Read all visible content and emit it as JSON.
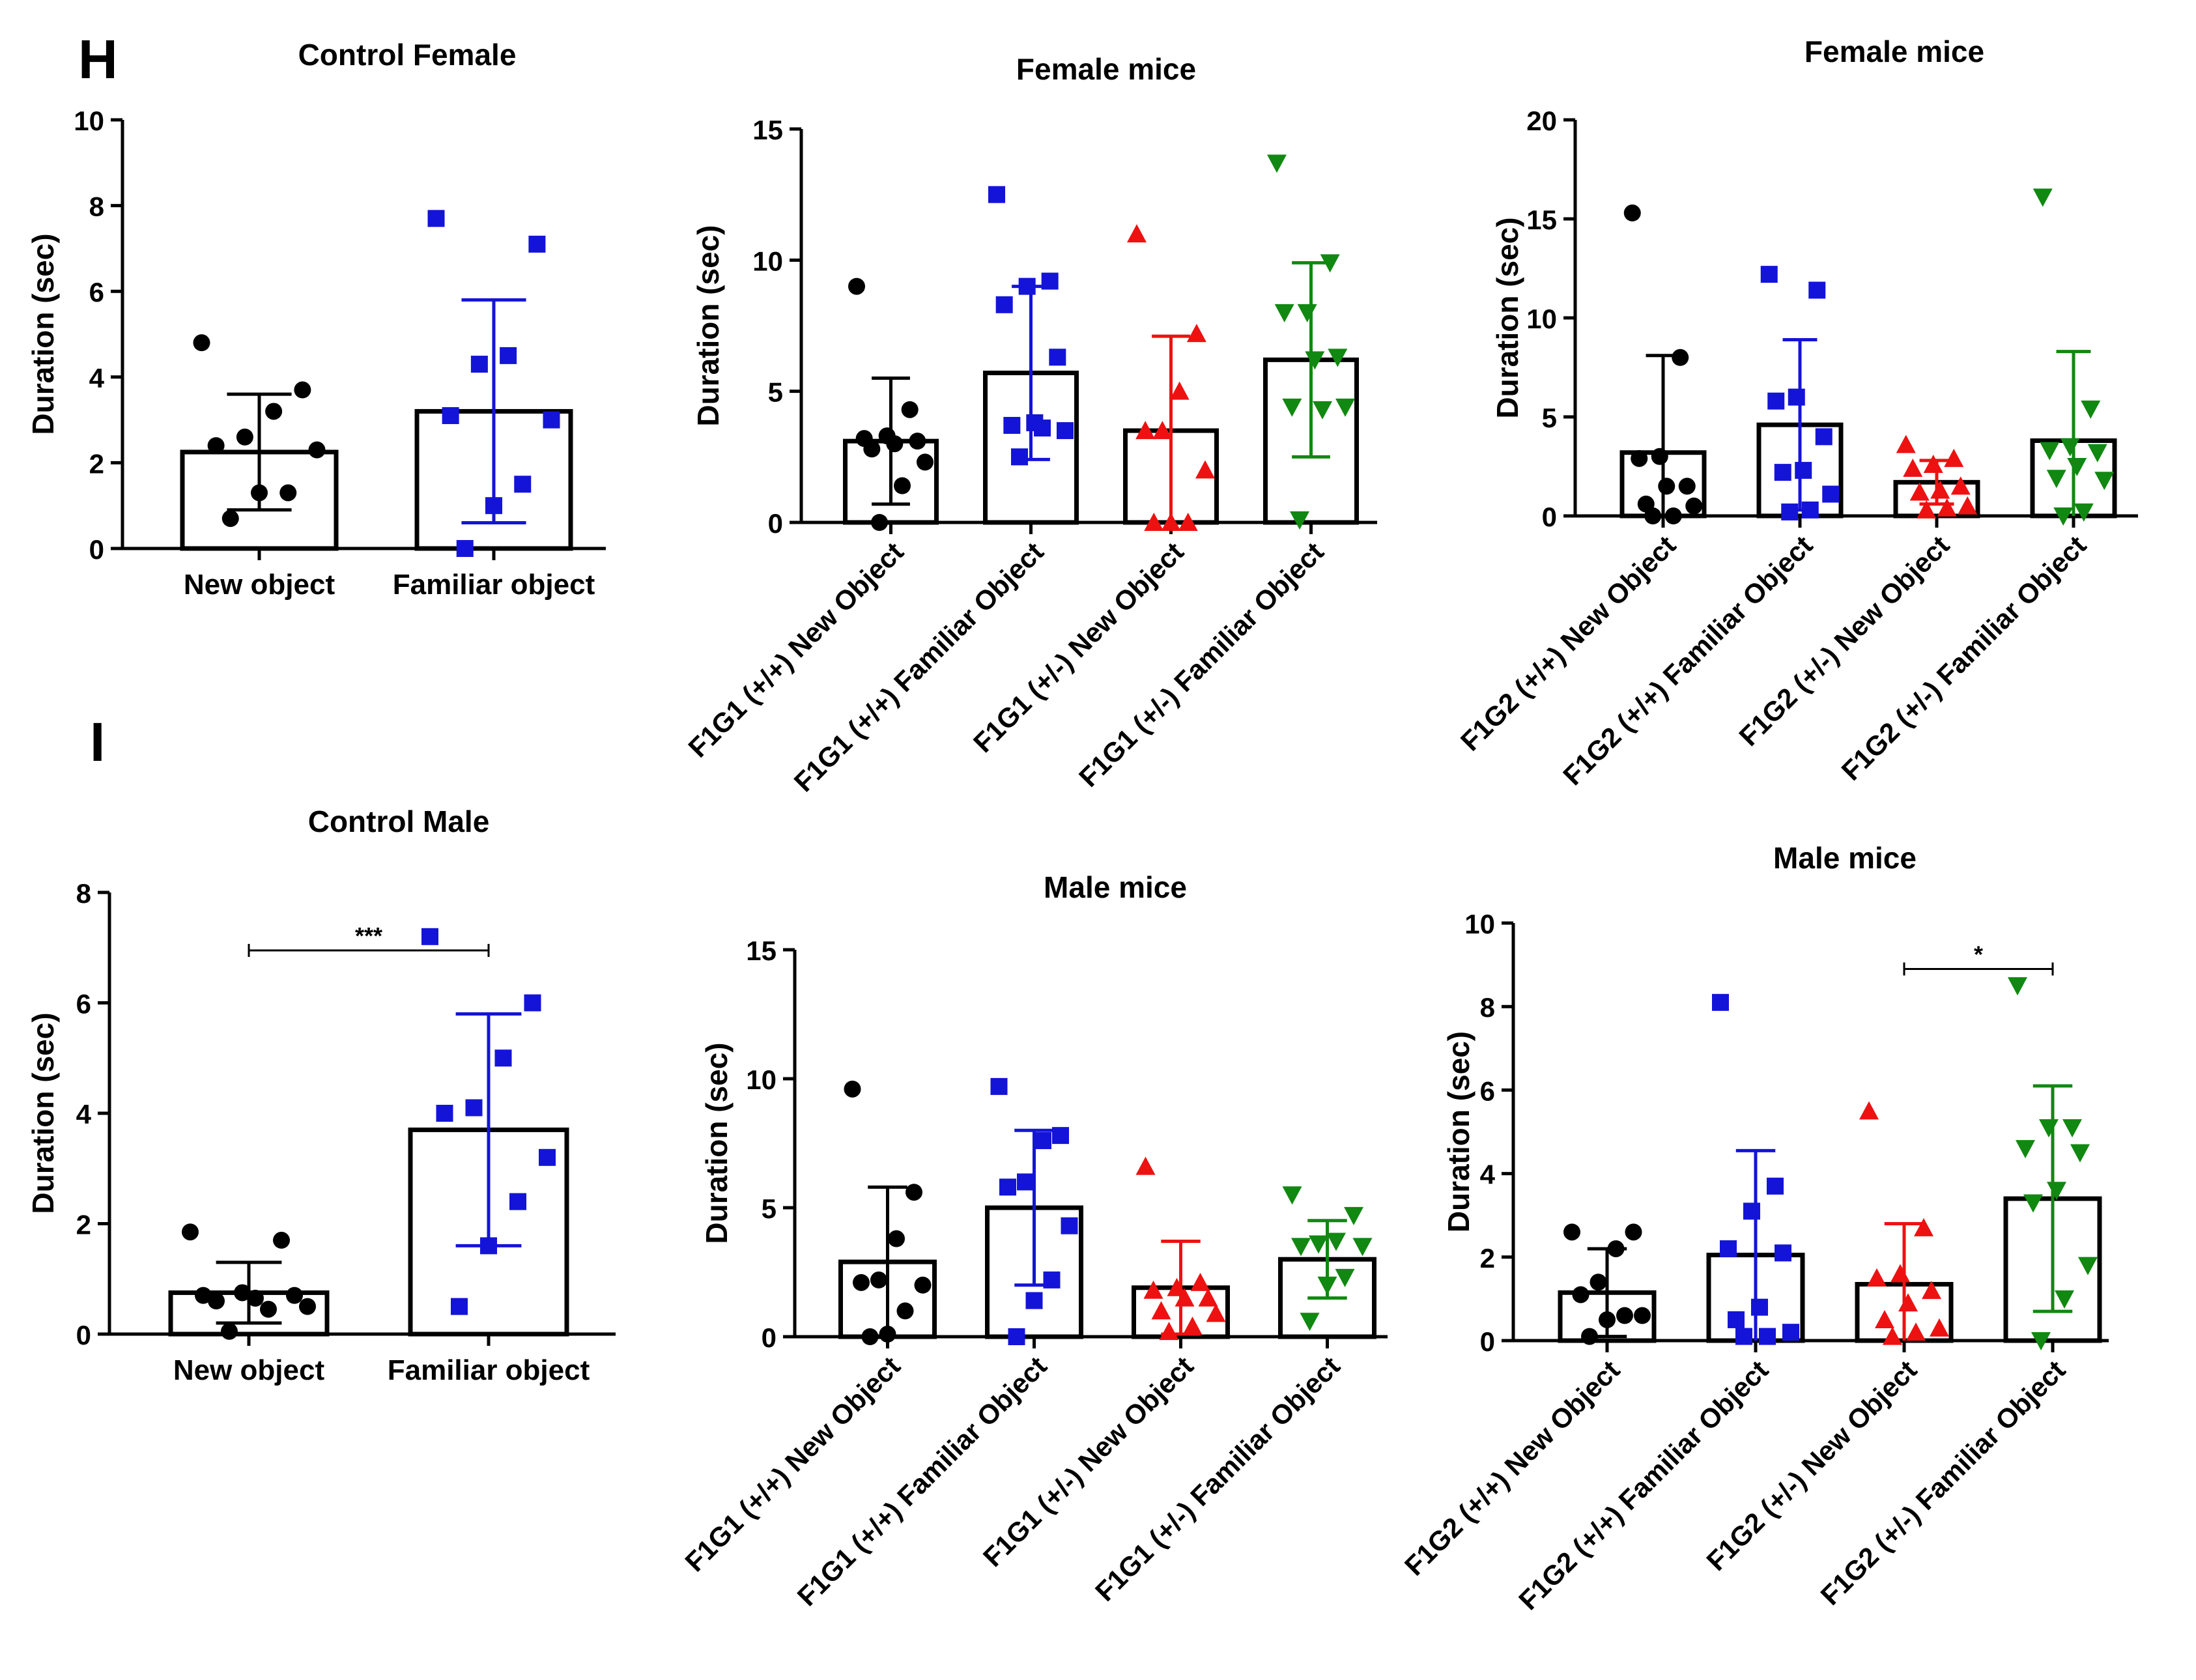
{
  "panels": {
    "h": {
      "letter": "H"
    },
    "i": {
      "letter": "I"
    }
  },
  "chart_data": [
    {
      "id": "h-control-female",
      "type": "bar",
      "title": "Control Female",
      "xlabel": "",
      "ylabel": "Duration (sec)",
      "ylim": [
        0,
        10
      ],
      "yticks": [
        0,
        2,
        4,
        6,
        8,
        10
      ],
      "categories": [
        "New object",
        "Familiar object"
      ],
      "series": [
        {
          "name": "New object",
          "color": "#000000",
          "marker": "circle",
          "mean": 2.25,
          "sd": 1.35,
          "points": [
            4.8,
            3.7,
            3.2,
            2.6,
            2.4,
            2.3,
            1.3,
            1.3,
            0.7
          ]
        },
        {
          "name": "Familiar object",
          "color": "#1414d8",
          "marker": "square",
          "mean": 3.2,
          "sd": 2.6,
          "points": [
            7.7,
            7.1,
            4.5,
            4.3,
            3.1,
            3.0,
            1.5,
            1.0,
            0.0
          ]
        }
      ],
      "significance": null
    },
    {
      "id": "h-female-f1g1",
      "type": "bar",
      "title": "Female mice",
      "xlabel": "",
      "ylabel": "Duration (sec)",
      "ylim": [
        0,
        15
      ],
      "yticks": [
        0,
        5,
        10,
        15
      ],
      "categories": [
        "F1G1 (+/+) New Object",
        "F1G1 (+/+) Familiar Object",
        "F1G1 (+/-) New Object",
        "F1G1 (+/-) Familiar Object"
      ],
      "series": [
        {
          "name": "F1G1 (+/+) New Object",
          "color": "#000000",
          "marker": "circle",
          "mean": 3.1,
          "sd": 2.4,
          "points": [
            9.0,
            4.3,
            3.3,
            3.2,
            3.1,
            3.0,
            2.8,
            2.3,
            1.4,
            0.0
          ]
        },
        {
          "name": "F1G1 (+/+) Familiar Object",
          "color": "#1414d8",
          "marker": "square",
          "mean": 5.7,
          "sd": 3.3,
          "points": [
            12.5,
            9.2,
            9.0,
            8.3,
            6.3,
            3.8,
            3.7,
            3.5,
            3.6,
            2.5
          ]
        },
        {
          "name": "F1G1 (+/-) New Object",
          "color": "#ee1111",
          "marker": "triangle-up",
          "mean": 3.5,
          "sd": 3.6,
          "points": [
            11.0,
            7.2,
            5.0,
            3.5,
            3.5,
            2.0,
            0.0,
            0.0,
            0.0
          ]
        },
        {
          "name": "F1G1 (+/-) Familiar Object",
          "color": "#118811",
          "marker": "triangle-down",
          "mean": 6.2,
          "sd": 3.7,
          "points": [
            13.7,
            9.9,
            8.0,
            8.0,
            6.3,
            6.2,
            4.4,
            4.4,
            4.3,
            0.1
          ]
        }
      ],
      "significance": null
    },
    {
      "id": "h-female-f1g2",
      "type": "bar",
      "title": "Female mice",
      "xlabel": "",
      "ylabel": "Duration (sec)",
      "ylim": [
        0,
        20
      ],
      "yticks": [
        0,
        5,
        10,
        15,
        20
      ],
      "categories": [
        "F1G2 (+/+) New Object",
        "F1G2 (+/+) Familiar Object",
        "F1G2 (+/-) New Object",
        "F1G2 (+/-) Familiar Object"
      ],
      "series": [
        {
          "name": "F1G2 (+/+) New Object",
          "color": "#000000",
          "marker": "circle",
          "mean": 3.2,
          "sd": 4.9,
          "points": [
            15.3,
            8.0,
            3.0,
            2.9,
            1.5,
            1.5,
            0.6,
            0.5,
            0.0,
            0.0
          ]
        },
        {
          "name": "F1G2 (+/+) Familiar Object",
          "color": "#1414d8",
          "marker": "square",
          "mean": 4.6,
          "sd": 4.3,
          "points": [
            12.2,
            11.4,
            6.0,
            5.8,
            4.0,
            2.3,
            2.2,
            1.1,
            0.3,
            0.2
          ]
        },
        {
          "name": "F1G2 (+/-) New Object",
          "color": "#ee1111",
          "marker": "triangle-up",
          "mean": 1.7,
          "sd": 1.1,
          "points": [
            3.6,
            2.9,
            2.6,
            2.4,
            1.5,
            1.3,
            1.2,
            0.5,
            0.4,
            0.3
          ]
        },
        {
          "name": "F1G2 (+/-) Familiar Object",
          "color": "#118811",
          "marker": "triangle-down",
          "mean": 3.8,
          "sd": 4.5,
          "points": [
            16.1,
            5.4,
            3.5,
            3.3,
            3.2,
            2.5,
            1.9,
            1.8,
            0.2,
            0.0
          ]
        }
      ],
      "significance": null
    },
    {
      "id": "i-control-male",
      "type": "bar",
      "title": "Control Male",
      "xlabel": "",
      "ylabel": "Duration (sec)",
      "ylim": [
        0,
        8
      ],
      "yticks": [
        0,
        2,
        4,
        6,
        8
      ],
      "categories": [
        "New object",
        "Familiar object"
      ],
      "series": [
        {
          "name": "New object",
          "color": "#000000",
          "marker": "circle",
          "mean": 0.75,
          "sd": 0.55,
          "points": [
            1.85,
            1.7,
            0.75,
            0.7,
            0.7,
            0.65,
            0.6,
            0.5,
            0.45,
            0.05
          ]
        },
        {
          "name": "Familiar object",
          "color": "#1414d8",
          "marker": "square",
          "mean": 3.7,
          "sd": 2.1,
          "points": [
            7.2,
            6.0,
            5.0,
            4.1,
            4.0,
            3.2,
            2.4,
            1.6,
            0.5
          ]
        }
      ],
      "significance": {
        "from": 0,
        "to": 1,
        "label": "***",
        "y": 6.95
      }
    },
    {
      "id": "i-male-f1g1",
      "type": "bar",
      "title": "Male mice",
      "xlabel": "",
      "ylabel": "Duration (sec)",
      "ylim": [
        0,
        15
      ],
      "yticks": [
        0,
        5,
        10,
        15
      ],
      "categories": [
        "F1G1 (+/+) New Object",
        "F1G1 (+/+) Familiar Object",
        "F1G1 (+/-) New Object",
        "F1G1 (+/-) Familiar Object"
      ],
      "series": [
        {
          "name": "F1G1 (+/+) New Object",
          "color": "#000000",
          "marker": "circle",
          "mean": 2.9,
          "sd": 2.9,
          "points": [
            9.6,
            5.6,
            3.8,
            2.2,
            2.1,
            2.0,
            1.0,
            0.1,
            0.0
          ]
        },
        {
          "name": "F1G1 (+/+) Familiar Object",
          "color": "#1414d8",
          "marker": "square",
          "mean": 5.0,
          "sd": 3.0,
          "points": [
            9.7,
            7.8,
            7.6,
            6.0,
            5.8,
            4.3,
            2.2,
            1.4,
            0.0
          ]
        },
        {
          "name": "F1G1 (+/-) New Object",
          "color": "#ee1111",
          "marker": "triangle-up",
          "mean": 1.9,
          "sd": 1.8,
          "points": [
            6.6,
            2.1,
            1.9,
            1.8,
            1.5,
            1.5,
            1.0,
            0.9,
            0.4,
            0.2
          ]
        },
        {
          "name": "F1G1 (+/-) Familiar Object",
          "color": "#118811",
          "marker": "triangle-down",
          "mean": 3.0,
          "sd": 1.5,
          "points": [
            5.5,
            4.7,
            3.7,
            3.6,
            3.5,
            3.5,
            2.3,
            2.0,
            0.6
          ]
        }
      ],
      "significance": null
    },
    {
      "id": "i-male-f1g2",
      "type": "bar",
      "title": "Male mice",
      "xlabel": "",
      "ylabel": "Duration (sec)",
      "ylim": [
        0,
        10
      ],
      "yticks": [
        0,
        2,
        4,
        6,
        8,
        10
      ],
      "categories": [
        "F1G2 (+/+) New Object",
        "F1G2 (+/+) Familiar Object",
        "F1G2 (+/-) New Object",
        "F1G2 (+/-) Familiar Object"
      ],
      "series": [
        {
          "name": "F1G2 (+/+) New Object",
          "color": "#000000",
          "marker": "circle",
          "mean": 1.15,
          "sd": 1.05,
          "points": [
            2.6,
            2.6,
            2.2,
            1.4,
            1.1,
            0.6,
            0.6,
            0.5,
            0.1
          ]
        },
        {
          "name": "F1G2 (+/+) Familiar Object",
          "color": "#1414d8",
          "marker": "square",
          "mean": 2.05,
          "sd": 2.5,
          "points": [
            8.1,
            3.7,
            3.1,
            2.2,
            2.1,
            0.8,
            0.5,
            0.2,
            0.1,
            0.1
          ]
        },
        {
          "name": "F1G2 (+/-) New Object",
          "color": "#ee1111",
          "marker": "triangle-up",
          "mean": 1.35,
          "sd": 1.45,
          "points": [
            5.5,
            2.7,
            1.6,
            1.5,
            1.2,
            0.9,
            0.5,
            0.3,
            0.2,
            0.1
          ]
        },
        {
          "name": "F1G2 (+/-) Familiar Object",
          "color": "#118811",
          "marker": "triangle-down",
          "mean": 3.4,
          "sd": 2.7,
          "points": [
            8.5,
            5.1,
            5.1,
            4.6,
            4.5,
            3.6,
            3.3,
            1.8,
            1.0,
            0.0
          ]
        }
      ],
      "significance": {
        "from": 2,
        "to": 3,
        "label": "*",
        "y": 8.9
      }
    }
  ]
}
